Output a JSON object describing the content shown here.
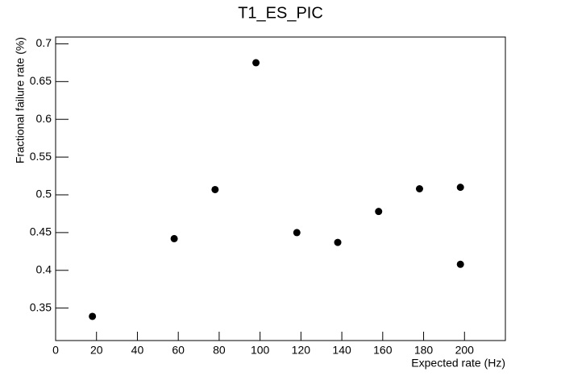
{
  "chart_data": {
    "type": "scatter",
    "title": "T1_ES_PIC",
    "x_label": "Expected rate (Hz)",
    "y_label": "Fractional failure rate (%)",
    "x": [
      18,
      58,
      78,
      98,
      118,
      138,
      158,
      178,
      198,
      198
    ],
    "values": [
      0.339,
      0.442,
      0.507,
      0.675,
      0.45,
      0.437,
      0.478,
      0.508,
      0.51,
      0.408
    ],
    "color": "#000000",
    "xlim": [
      0,
      220
    ],
    "xticks": [
      0,
      20,
      40,
      60,
      80,
      100,
      120,
      140,
      160,
      180,
      200
    ],
    "ylim": [
      0.307,
      0.709
    ],
    "yticks": [
      0.35,
      0.4,
      0.45,
      0.5,
      0.55,
      0.6,
      0.65,
      0.7
    ],
    "grid": false
  }
}
